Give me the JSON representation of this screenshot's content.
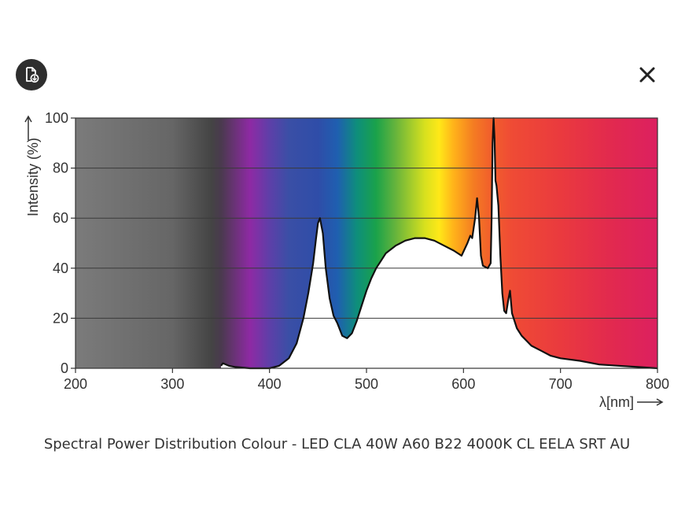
{
  "toolbar": {
    "download_icon": "document-download-icon",
    "close_icon": "close-icon"
  },
  "caption": "Spectral Power Distribution Colour - LED CLA 40W A60 B22 4000K CL EELA SRT AU",
  "chart_data": {
    "type": "area",
    "title": "",
    "xlabel": "λ[nm]",
    "ylabel": "Intensity (%)",
    "xlim": [
      200,
      800
    ],
    "ylim": [
      0,
      100
    ],
    "x_ticks": [
      200,
      300,
      400,
      500,
      600,
      700,
      800
    ],
    "y_ticks": [
      0,
      20,
      40,
      60,
      80,
      100
    ],
    "grid": "horizontal",
    "fill_color": "#ffffff",
    "line_color": "#111111",
    "series": [
      {
        "x": [
          350,
          352,
          358,
          365,
          380,
          400,
          410,
          420,
          428,
          435,
          440,
          445,
          448,
          450,
          452,
          455,
          458,
          462,
          466,
          470,
          475,
          480,
          485,
          490,
          495,
          500,
          505,
          510,
          515,
          520,
          530,
          540,
          550,
          560,
          570,
          580,
          590,
          598,
          604,
          607,
          609,
          612,
          614,
          616,
          618,
          620,
          625,
          628,
          629,
          630,
          631,
          632,
          633,
          634,
          636,
          638,
          640,
          642,
          644,
          646,
          648,
          650,
          655,
          660,
          665,
          670,
          680,
          690,
          700,
          720,
          740,
          760,
          780,
          800
        ],
        "y": [
          1,
          2,
          1,
          0.5,
          0,
          0,
          1,
          4,
          10,
          20,
          30,
          42,
          52,
          58,
          60,
          54,
          40,
          28,
          21,
          18,
          13,
          12,
          14,
          19,
          25,
          31,
          36,
          40,
          43,
          46,
          49,
          51,
          52,
          52,
          51,
          49,
          47,
          45,
          50,
          53,
          52,
          60,
          68,
          60,
          45,
          41,
          40,
          42,
          60,
          90,
          100,
          92,
          75,
          73,
          65,
          45,
          30,
          23,
          22,
          27,
          31,
          22,
          16,
          13,
          11,
          9,
          7,
          5,
          4,
          3,
          1.5,
          1,
          0.5,
          0
        ]
      }
    ],
    "background_spectrum": {
      "wavelengths": [
        200,
        300,
        340,
        350,
        380,
        400,
        420,
        450,
        470,
        490,
        510,
        530,
        560,
        575,
        590,
        610,
        625,
        650,
        700,
        750,
        800
      ],
      "colors": [
        "#7b7b7b",
        "#666666",
        "#444444",
        "#4a3a4e",
        "#8e2aa4",
        "#5e3fa8",
        "#3a4fa6",
        "#2f4da8",
        "#1f5fb0",
        "#0e8e7c",
        "#1aa24a",
        "#66b43c",
        "#d7e01e",
        "#ffe818",
        "#ffb21a",
        "#f47d22",
        "#f2632a",
        "#ef4b35",
        "#ea3a3e",
        "#e22a4e",
        "#dc2060"
      ]
    }
  }
}
